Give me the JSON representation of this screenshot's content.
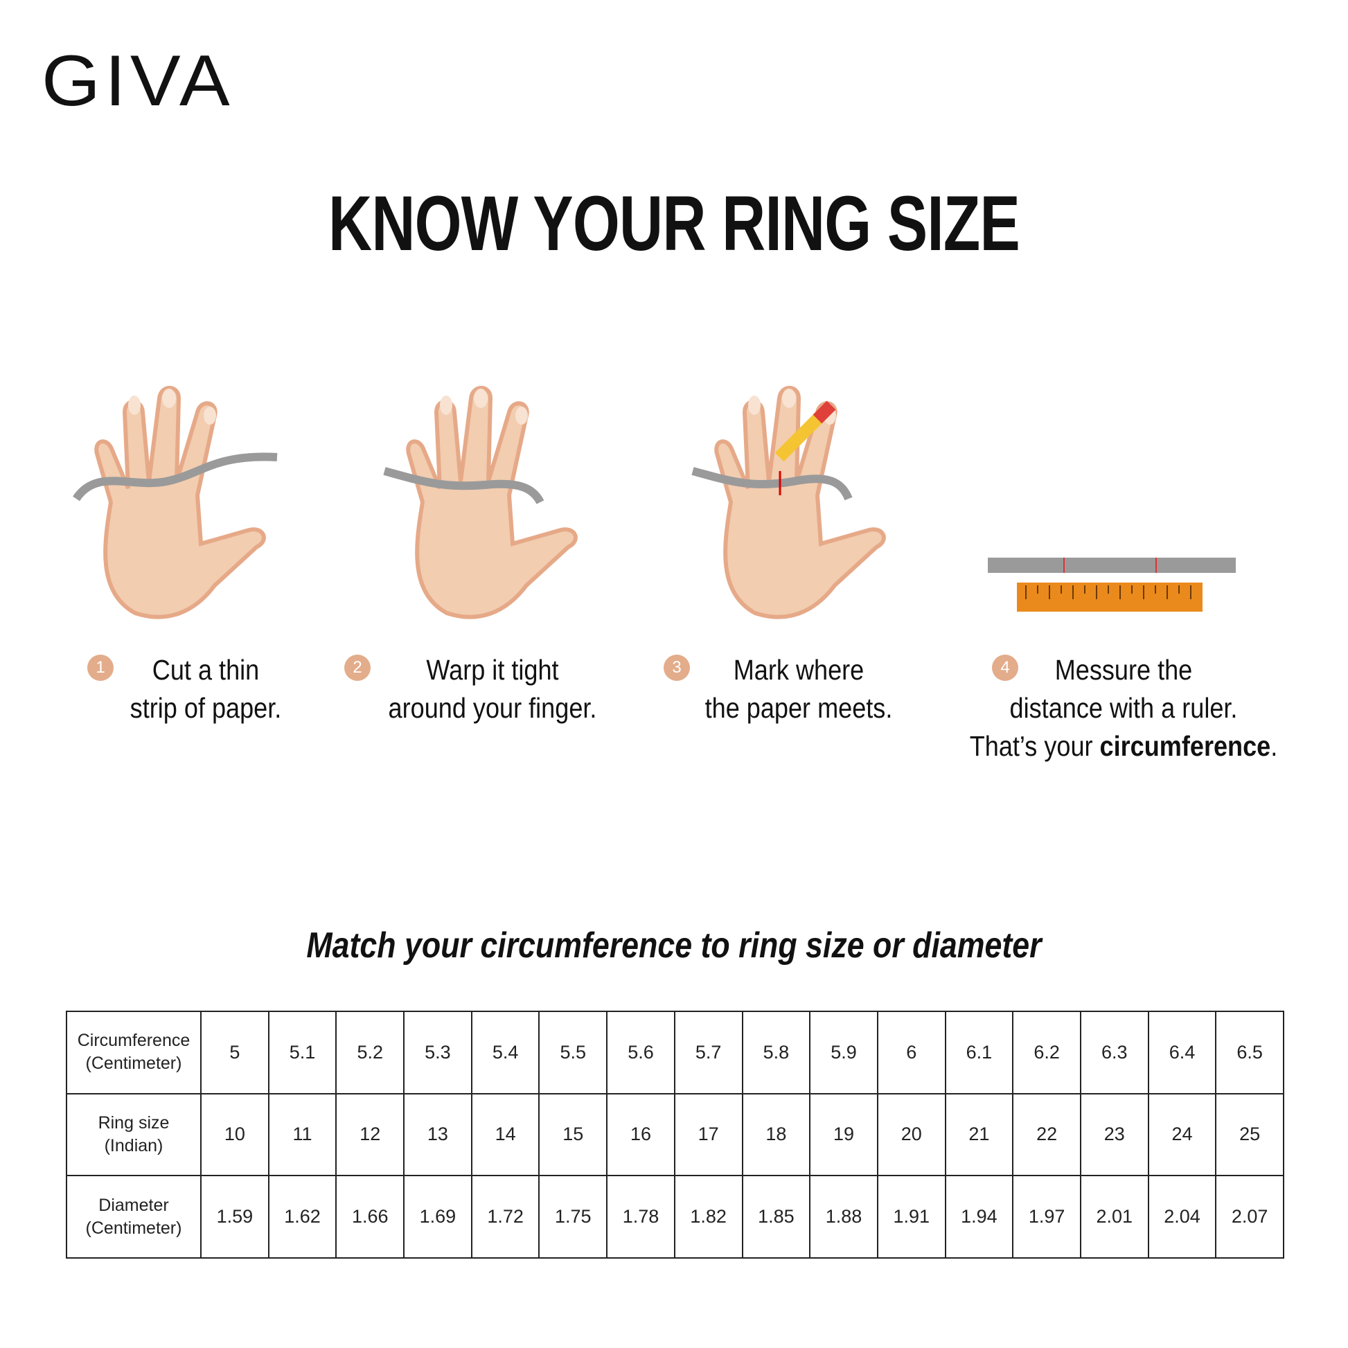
{
  "brand": {
    "logo": "GIVA"
  },
  "title": "KNOW YOUR RING SIZE",
  "steps": [
    {
      "number": "1",
      "line1": "Cut a thin",
      "line2": "strip of paper."
    },
    {
      "number": "2",
      "line1": "Warp it tight",
      "line2": "around your finger."
    },
    {
      "number": "3",
      "line1": "Mark where",
      "line2": "the paper meets."
    },
    {
      "number": "4",
      "line1": "Messure the",
      "line2": "distance with a ruler.",
      "line3_prefix": "That’s your ",
      "line3_bold": "circumference",
      "line3_suffix": "."
    }
  ],
  "subtitle": "Match your circumference to ring size or diameter",
  "table": {
    "rows": [
      {
        "label1": "Circumference",
        "label2": "(Centimeter)",
        "values": [
          "5",
          "5.1",
          "5.2",
          "5.3",
          "5.4",
          "5.5",
          "5.6",
          "5.7",
          "5.8",
          "5.9",
          "6",
          "6.1",
          "6.2",
          "6.3",
          "6.4",
          "6.5"
        ]
      },
      {
        "label1": "Ring size",
        "label2": "(Indian)",
        "values": [
          "10",
          "11",
          "12",
          "13",
          "14",
          "15",
          "16",
          "17",
          "18",
          "19",
          "20",
          "21",
          "22",
          "23",
          "24",
          "25"
        ]
      },
      {
        "label1": "Diameter",
        "label2": "(Centimeter)",
        "values": [
          "1.59",
          "1.62",
          "1.66",
          "1.69",
          "1.72",
          "1.75",
          "1.78",
          "1.82",
          "1.85",
          "1.88",
          "1.91",
          "1.94",
          "1.97",
          "2.01",
          "2.04",
          "2.07"
        ]
      }
    ]
  },
  "colors": {
    "skin": "#f2cdb0",
    "skin_edge": "#e6a988",
    "number_badge": "#e3ac8a",
    "paper": "#9a9a9a",
    "ruler": "#ea8a1c",
    "pencil": "#f5c433"
  }
}
